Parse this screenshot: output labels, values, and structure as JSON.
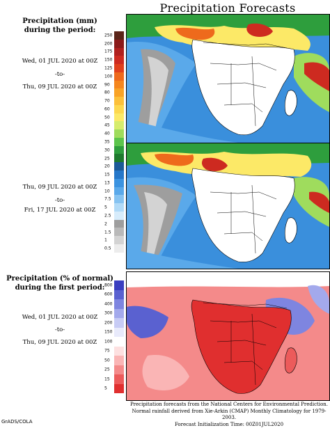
{
  "title": "Precipitation Forecasts",
  "panel1": {
    "heading1": "Precipitation (mm)",
    "heading2": "during the period:",
    "start": "Wed, 01 JUL 2020 at 00Z",
    "to": "-to-",
    "end": "Thu, 09 JUL 2020 at 00Z"
  },
  "panel2": {
    "start": "Thu, 09 JUL 2020 at 00Z",
    "to": "-to-",
    "end": "Fri, 17 JUL 2020 at 00Z"
  },
  "panel3": {
    "heading1": "Precipitation (% of normal)",
    "heading2": "during the first period:",
    "start": "Wed, 01 JUL 2020 at 00Z",
    "to": "-to-",
    "end": "Thu, 09 JUL 2020 at 00Z"
  },
  "colorbar_mm": {
    "ticks": [
      "250",
      "200",
      "175",
      "150",
      "125",
      "100",
      "90",
      "80",
      "70",
      "60",
      "50",
      "45",
      "40",
      "35",
      "30",
      "25",
      "20",
      "15",
      "13",
      "10",
      "7.5",
      "5",
      "2.5",
      "2",
      "1.5",
      "1",
      "0.5"
    ],
    "colors": [
      "#5a2418",
      "#8b1a1a",
      "#b0201e",
      "#cd2a20",
      "#e0401c",
      "#ee6a1c",
      "#f5861e",
      "#f9a326",
      "#fcc03a",
      "#fdd84f",
      "#fce967",
      "#d6ec6d",
      "#9fdc5d",
      "#5cc54c",
      "#2e9e3d",
      "#1e7a2e",
      "#1c5a98",
      "#2577c9",
      "#3b93e0",
      "#5aa9ea",
      "#86c3f1",
      "#b1daf7",
      "#d7ecfb",
      "#9e9e9e",
      "#b9b9b9",
      "#d3d3d3",
      "#ececec"
    ]
  },
  "colorbar_pct": {
    "ticks": [
      "800",
      "600",
      "400",
      "300",
      "200",
      "150",
      "100",
      "75",
      "50",
      "25",
      "15",
      "5"
    ],
    "colors": [
      "#3a3ec0",
      "#5a61d0",
      "#7e85e0",
      "#a3a9ec",
      "#c7cbf5",
      "#e8eafb",
      "#ffffff",
      "#fde0e0",
      "#fab5b5",
      "#f48a8a",
      "#ec5b5b",
      "#e02f2f"
    ]
  },
  "footer": {
    "line1": "Precipitation forecasts from the National Centers for Environmental Prediction.",
    "line2": "Normal rainfall derived from Xie-Arkin (CMAP) Monthly Climatology for 1979-2003.",
    "line3": "Forecast Initialization Time: 00Z01JUL2020"
  },
  "credit": "GrADS/COLA"
}
